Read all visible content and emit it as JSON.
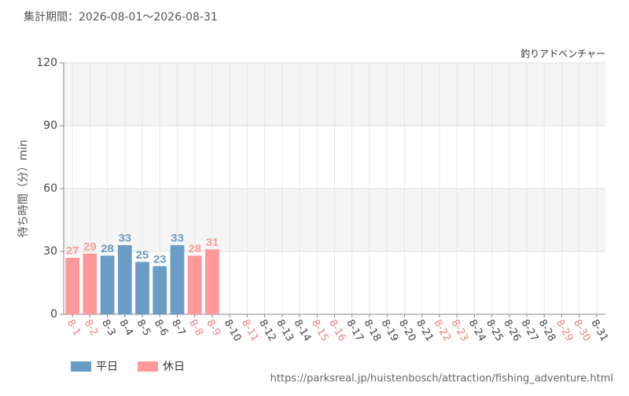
{
  "header": "集計期間：2026-08-01～2026-08-31",
  "chart_data": {
    "type": "bar",
    "title": "釣りアドベンチャー",
    "ylabel": "待ち時間（分）min",
    "categories": [
      "8-1",
      "8-2",
      "8-3",
      "8-4",
      "8-5",
      "8-6",
      "8-7",
      "8-8",
      "8-9",
      "8-10",
      "8-11",
      "8-12",
      "8-13",
      "8-14",
      "8-15",
      "8-16",
      "8-17",
      "8-18",
      "8-19",
      "8-20",
      "8-21",
      "8-22",
      "8-23",
      "8-24",
      "8-25",
      "8-26",
      "8-27",
      "8-28",
      "8-29",
      "8-30",
      "8-31"
    ],
    "category_label_colors": [
      "#f08080",
      "#f08080",
      "#444",
      "#444",
      "#444",
      "#444",
      "#444",
      "#f08080",
      "#f08080",
      "#444",
      "#f08080",
      "#444",
      "#444",
      "#444",
      "#f08080",
      "#f08080",
      "#444",
      "#444",
      "#444",
      "#444",
      "#444",
      "#f08080",
      "#f08080",
      "#444",
      "#444",
      "#444",
      "#444",
      "#444",
      "#f08080",
      "#f08080",
      "#444"
    ],
    "series": [
      {
        "name": "平日",
        "color": "#6a9cc6",
        "values": [
          null,
          null,
          28,
          33,
          25,
          23,
          33,
          null,
          null,
          null,
          null,
          null,
          null,
          null,
          null,
          null,
          null,
          null,
          null,
          null,
          null,
          null,
          null,
          null,
          null,
          null,
          null,
          null,
          null,
          null,
          null
        ]
      },
      {
        "name": "休日",
        "color": "#ff9999",
        "values": [
          27,
          29,
          null,
          null,
          null,
          null,
          null,
          28,
          31,
          null,
          null,
          null,
          null,
          null,
          null,
          null,
          null,
          null,
          null,
          null,
          null,
          null,
          null,
          null,
          null,
          null,
          null,
          null,
          null,
          null,
          null
        ]
      }
    ],
    "ylim": [
      0,
      120
    ],
    "yticks": [
      0,
      30,
      60,
      90,
      120
    ],
    "grid": true
  },
  "footer": "https://parksreal.jp/huistenbosch/attraction/fishing_adventure.html"
}
